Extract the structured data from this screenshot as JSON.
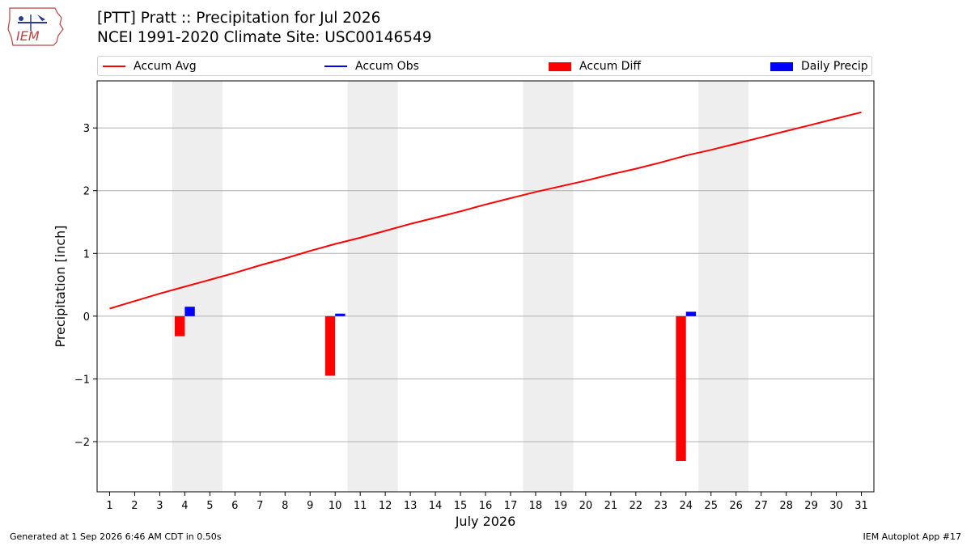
{
  "header": {
    "title_line1": "[PTT] Pratt :: Precipitation for Jul 2026",
    "title_line2": "NCEI 1991-2020 Climate Site: USC00146549"
  },
  "logo": {
    "text": "IEM",
    "icon": "iowa-state-map-icon"
  },
  "footer": {
    "generated": "Generated at 1 Sep 2026 6:46 AM CDT in 0.50s",
    "app": "IEM Autoplot App #17"
  },
  "colors": {
    "accum_avg": "#ff0000",
    "accum_obs": "#0000ff",
    "accum_diff": "#ff0000",
    "daily_precip": "#0000ff",
    "weekend_band": "#eeeeee",
    "grid": "#b0b0b0"
  },
  "chart_data": {
    "type": "line",
    "title": "[PTT] Pratt :: Precipitation for Jul 2026",
    "xlabel": "July 2026",
    "ylabel": "Precipitation [inch]",
    "xlim": [
      0.5,
      31.5
    ],
    "ylim": [
      -2.8,
      3.75
    ],
    "x_ticks": [
      1,
      2,
      3,
      4,
      5,
      6,
      7,
      8,
      9,
      10,
      11,
      12,
      13,
      14,
      15,
      16,
      17,
      18,
      19,
      20,
      21,
      22,
      23,
      24,
      25,
      26,
      27,
      28,
      29,
      30,
      31
    ],
    "y_ticks": [
      -2,
      -1,
      0,
      1,
      2,
      3
    ],
    "y_tick_labels": [
      "−2",
      "−1",
      "0",
      "1",
      "2",
      "3"
    ],
    "grid": "horizontal",
    "legend_placement": "top",
    "weekend_days": [
      [
        4,
        5
      ],
      [
        11,
        12
      ],
      [
        18,
        19
      ],
      [
        25,
        26
      ]
    ],
    "legend": [
      "Accum Avg",
      "Accum Obs",
      "Accum Diff",
      "Daily Precip"
    ],
    "series": [
      {
        "name": "Accum Avg",
        "kind": "line",
        "x": [
          1,
          2,
          3,
          4,
          5,
          6,
          7,
          8,
          9,
          10,
          11,
          12,
          13,
          14,
          15,
          16,
          17,
          18,
          19,
          20,
          21,
          22,
          23,
          24,
          25,
          26,
          27,
          28,
          29,
          30,
          31
        ],
        "values": [
          0.12,
          0.24,
          0.36,
          0.47,
          0.58,
          0.69,
          0.81,
          0.92,
          1.04,
          1.15,
          1.25,
          1.36,
          1.47,
          1.57,
          1.67,
          1.78,
          1.88,
          1.98,
          2.07,
          2.16,
          2.26,
          2.35,
          2.45,
          2.56,
          2.65,
          2.75,
          2.85,
          2.95,
          3.05,
          3.15,
          3.25
        ]
      },
      {
        "name": "Accum Diff",
        "kind": "bar",
        "x": [
          4,
          10,
          24
        ],
        "values": [
          -0.32,
          -0.95,
          -2.31
        ]
      },
      {
        "name": "Daily Precip",
        "kind": "bar",
        "x": [
          4,
          10,
          24
        ],
        "values": [
          0.15,
          0.04,
          0.07
        ]
      }
    ]
  }
}
